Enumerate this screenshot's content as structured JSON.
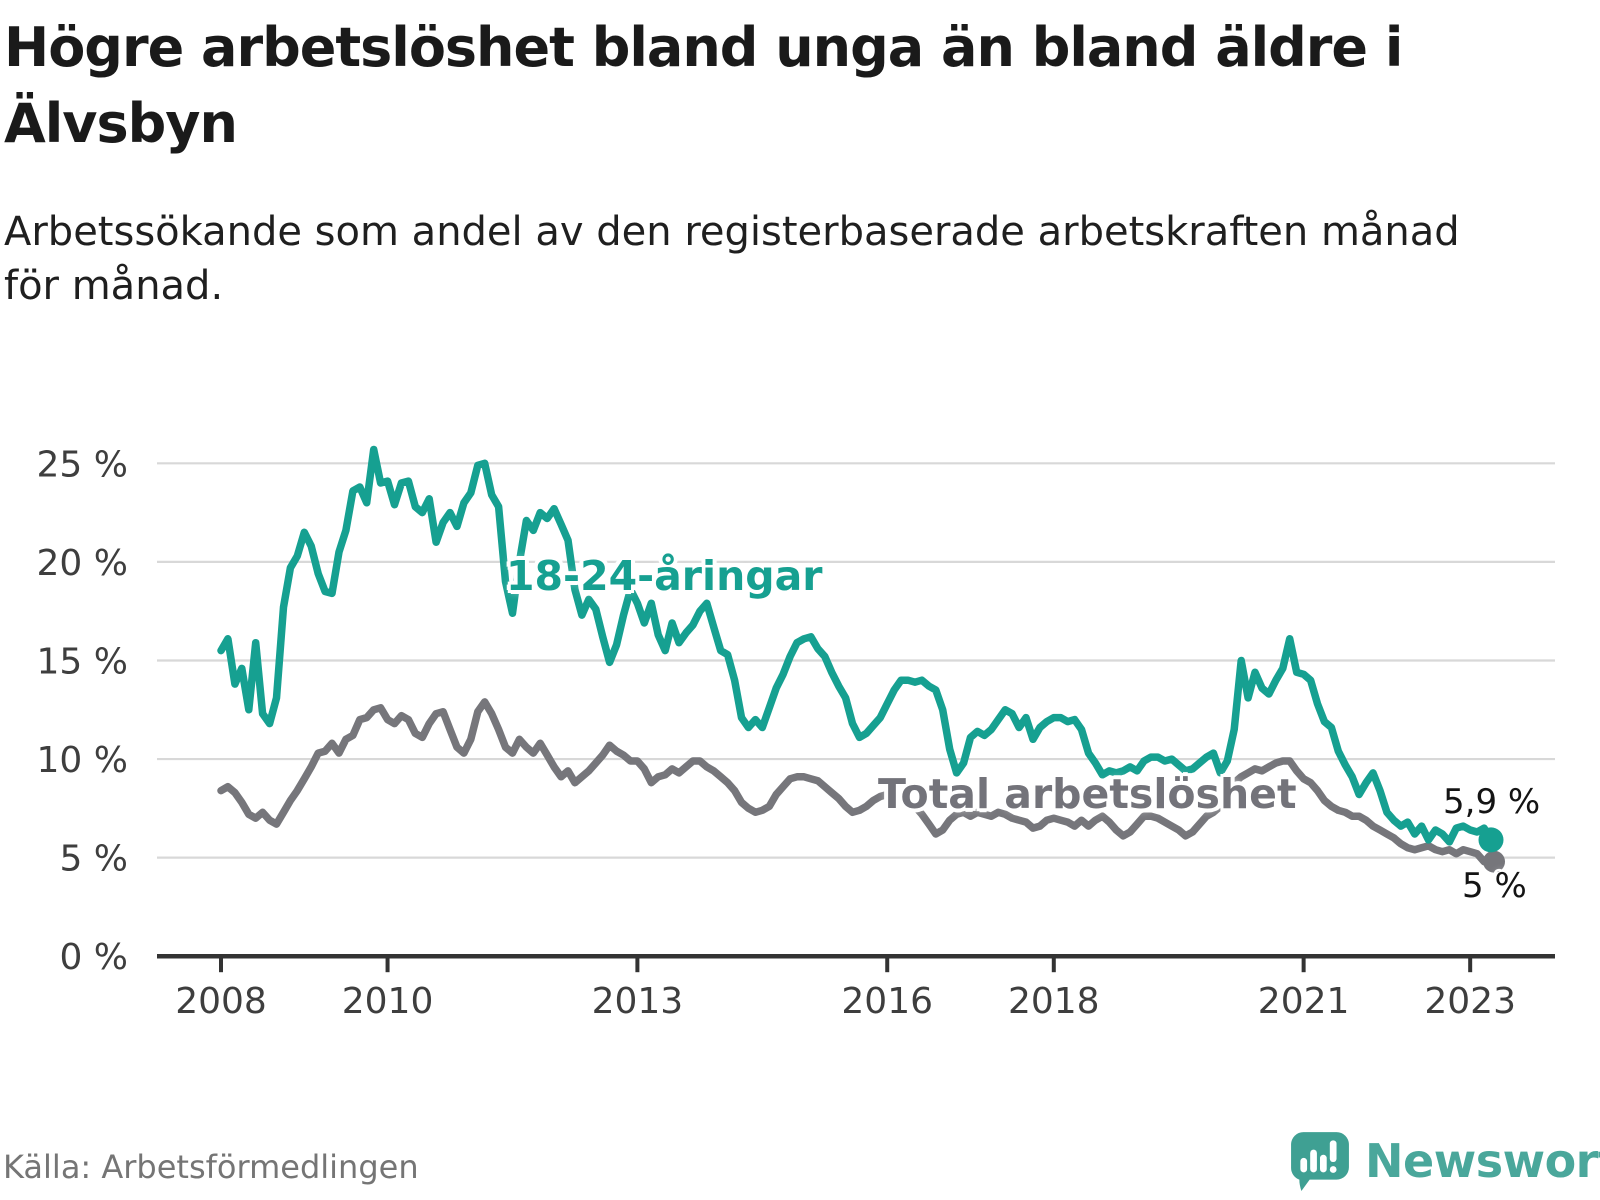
{
  "page": {
    "title_lines": [
      "Högre arbetslöshet bland unga än bland äldre i",
      "Älvsbyn"
    ],
    "subtitle_lines": [
      "Arbetssökande som andel av den registerbaserade arbetskraften månad",
      "för månad."
    ]
  },
  "footer": {
    "source": "Källa: Arbetsförmedlingen",
    "logo_text": "Newsworthy"
  },
  "colors": {
    "young_line": "#16a091",
    "total_line": "#76767b",
    "grid": "#d8d8d8",
    "axis": "#333333",
    "axis_label": "#3e3e3e",
    "end_label": "#141414",
    "logo_icon": "#3fa093",
    "logo_text": "#4aa79b",
    "source_text": "#757575"
  },
  "chart_data": {
    "type": "line",
    "title": "Högre arbetslöshet bland unga än bland äldre i Älvsbyn",
    "subtitle": "Arbetssökande som andel av den registerbaserade arbetskraften månad för månad.",
    "source": "Arbetsförmedlingen",
    "x_unit": "month",
    "x_start": "2008-01",
    "x_end": "2023-04",
    "ylim": [
      0,
      25
    ],
    "grid": true,
    "legend": "inline-labels",
    "y_tick_values": [
      0,
      5,
      10,
      15,
      20,
      25
    ],
    "y_tick_labels": [
      "0 %",
      "5 %",
      "10 %",
      "15 %",
      "20 %",
      "25 %"
    ],
    "x_tick_years": [
      2008,
      2010,
      2013,
      2016,
      2018,
      2021,
      2023
    ],
    "x_tick_labels": [
      "2008",
      "2010",
      "2013",
      "2016",
      "2018",
      "2021",
      "2023"
    ],
    "series": [
      {
        "name": "18-24-åringar",
        "color": "#16a091",
        "end_label": "5,9 %",
        "end_value": 5.9,
        "values": [
          15.5,
          16.1,
          13.8,
          14.6,
          12.5,
          15.9,
          12.3,
          11.8,
          13.1,
          17.7,
          19.7,
          20.3,
          21.5,
          20.8,
          19.4,
          18.5,
          18.4,
          20.5,
          21.6,
          23.6,
          23.8,
          23.0,
          25.7,
          24.0,
          24.1,
          22.9,
          24.0,
          24.1,
          22.8,
          22.5,
          23.2,
          21.0,
          22.0,
          22.5,
          21.8,
          23.0,
          23.5,
          24.9,
          25.0,
          23.4,
          22.8,
          19.0,
          17.4,
          20.0,
          22.1,
          21.6,
          22.5,
          22.2,
          22.7,
          21.9,
          21.1,
          18.6,
          17.3,
          18.1,
          17.6,
          16.2,
          14.9,
          15.8,
          17.3,
          18.6,
          17.9,
          16.9,
          17.9,
          16.3,
          15.5,
          16.9,
          15.9,
          16.4,
          16.8,
          17.5,
          17.9,
          16.7,
          15.5,
          15.3,
          14.0,
          12.1,
          11.6,
          12.0,
          11.6,
          12.6,
          13.6,
          14.3,
          15.2,
          15.9,
          16.1,
          16.2,
          15.6,
          15.2,
          14.4,
          13.7,
          13.1,
          11.8,
          11.1,
          11.3,
          11.7,
          12.1,
          12.8,
          13.5,
          14.0,
          14.0,
          13.9,
          14.0,
          13.7,
          13.5,
          12.5,
          10.5,
          9.3,
          9.8,
          11.1,
          11.4,
          11.2,
          11.5,
          12.0,
          12.5,
          12.3,
          11.6,
          12.1,
          11.0,
          11.6,
          11.9,
          12.1,
          12.1,
          11.9,
          12.0,
          11.5,
          10.3,
          9.8,
          9.2,
          9.4,
          9.3,
          9.4,
          9.6,
          9.4,
          9.9,
          10.1,
          10.1,
          9.9,
          10.0,
          9.7,
          9.4,
          9.5,
          9.8,
          10.1,
          10.3,
          9.3,
          9.9,
          11.5,
          15.0,
          13.1,
          14.4,
          13.6,
          13.3,
          14.0,
          14.6,
          16.1,
          14.4,
          14.3,
          14.0,
          12.8,
          11.9,
          11.6,
          10.4,
          9.7,
          9.1,
          8.2,
          8.8,
          9.3,
          8.4,
          7.3,
          6.9,
          6.6,
          6.8,
          6.2,
          6.6,
          5.9,
          6.4,
          6.2,
          5.8,
          6.5,
          6.6,
          6.4,
          6.3,
          6.5,
          5.9
        ]
      },
      {
        "name": "Total arbetslöshet",
        "color": "#76767b",
        "end_label": "5 %",
        "end_value": 5.0,
        "values": [
          8.4,
          8.6,
          8.3,
          7.8,
          7.2,
          7.0,
          7.3,
          6.9,
          6.7,
          7.3,
          7.9,
          8.4,
          9.0,
          9.6,
          10.3,
          10.4,
          10.8,
          10.3,
          11.0,
          11.2,
          12.0,
          12.1,
          12.5,
          12.6,
          12.0,
          11.8,
          12.2,
          12.0,
          11.3,
          11.1,
          11.8,
          12.3,
          12.4,
          11.5,
          10.6,
          10.3,
          11.0,
          12.4,
          12.9,
          12.3,
          11.5,
          10.6,
          10.3,
          11.0,
          10.6,
          10.3,
          10.8,
          10.2,
          9.6,
          9.1,
          9.4,
          8.8,
          9.1,
          9.4,
          9.8,
          10.2,
          10.7,
          10.4,
          10.2,
          9.9,
          9.9,
          9.5,
          8.8,
          9.1,
          9.2,
          9.5,
          9.3,
          9.6,
          9.9,
          9.9,
          9.6,
          9.4,
          9.1,
          8.8,
          8.4,
          7.8,
          7.5,
          7.3,
          7.4,
          7.6,
          8.2,
          8.6,
          9.0,
          9.1,
          9.1,
          9.0,
          8.9,
          8.6,
          8.3,
          8.0,
          7.6,
          7.3,
          7.4,
          7.6,
          7.9,
          8.1,
          8.2,
          8.3,
          8.1,
          7.9,
          7.6,
          7.2,
          6.7,
          6.2,
          6.4,
          6.9,
          7.2,
          7.3,
          7.1,
          7.3,
          7.2,
          7.1,
          7.3,
          7.2,
          7.0,
          6.9,
          6.8,
          6.5,
          6.6,
          6.9,
          7.0,
          6.9,
          6.8,
          6.6,
          6.9,
          6.6,
          6.9,
          7.1,
          6.8,
          6.4,
          6.1,
          6.3,
          6.7,
          7.1,
          7.1,
          7.0,
          6.8,
          6.6,
          6.4,
          6.1,
          6.3,
          6.7,
          7.1,
          7.3,
          7.6,
          8.1,
          8.8,
          9.1,
          9.3,
          9.5,
          9.4,
          9.6,
          9.8,
          9.9,
          9.9,
          9.4,
          9.0,
          8.8,
          8.4,
          7.9,
          7.6,
          7.4,
          7.3,
          7.1,
          7.1,
          6.9,
          6.6,
          6.4,
          6.2,
          6.0,
          5.7,
          5.5,
          5.4,
          5.5,
          5.6,
          5.4,
          5.3,
          5.4,
          5.2,
          5.4,
          5.3,
          5.2,
          4.8,
          5.0
        ]
      }
    ]
  }
}
